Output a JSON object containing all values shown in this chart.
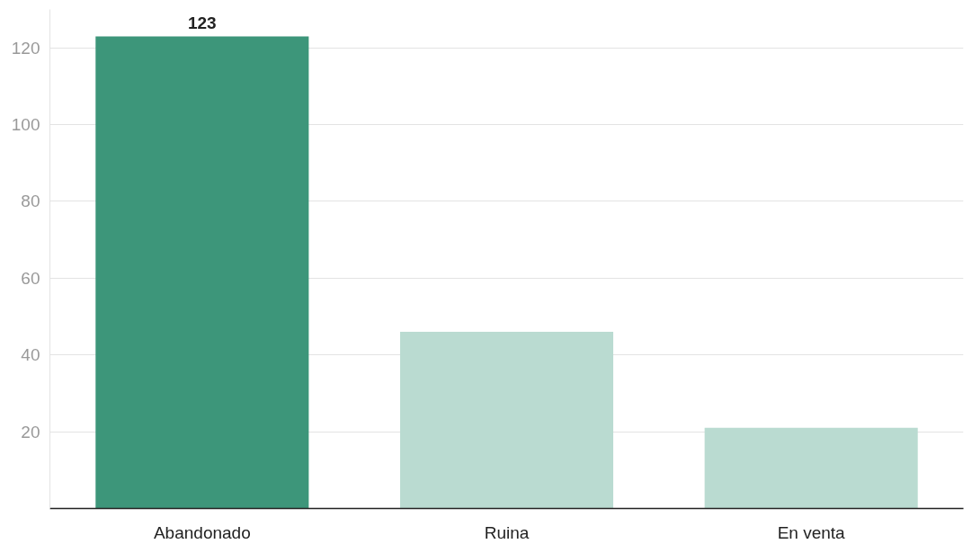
{
  "chart_data": {
    "type": "bar",
    "categories": [
      "Abandonado",
      "Ruina",
      "En venta"
    ],
    "values": [
      123,
      46,
      21
    ],
    "colors": [
      "#3d967a",
      "#badbd1",
      "#badbd1"
    ],
    "value_labels": [
      "123",
      null,
      null
    ],
    "ylim": [
      0,
      130
    ],
    "yticks": [
      20,
      40,
      60,
      80,
      100,
      120
    ],
    "grid": "y"
  }
}
